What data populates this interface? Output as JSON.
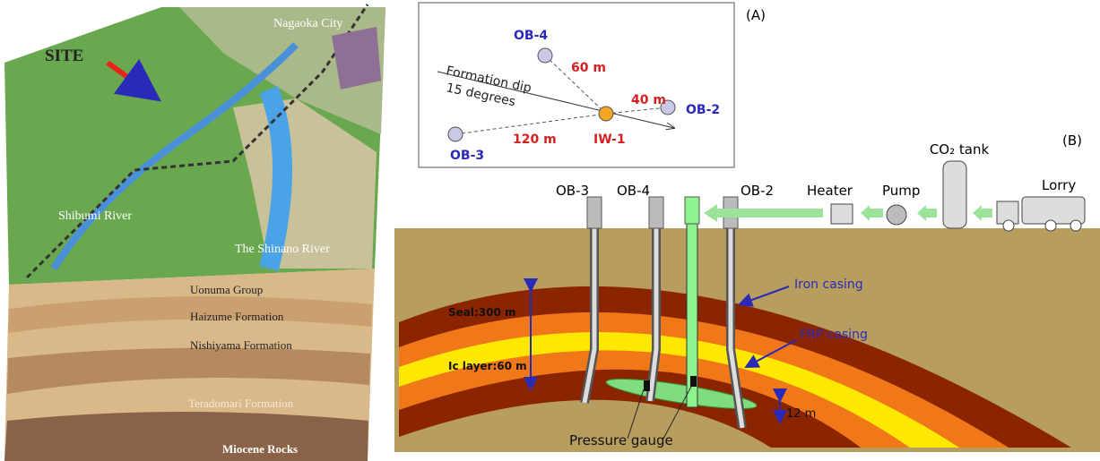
{
  "left_panel": {
    "site": "SITE",
    "city": "Nagaoka City",
    "river_1": "Shibumi River",
    "river_2": "The Shinano River",
    "formations": [
      "Uonuma Group",
      "Haizume Formation",
      "Nishiyama Formation",
      "Teradomari Formation",
      "Miocene Rocks"
    ]
  },
  "panel_a": {
    "label": "(A)",
    "wells": {
      "ob4": "OB-4",
      "ob2": "OB-2",
      "ob3": "OB-3",
      "iw1": "IW-1"
    },
    "distances": {
      "ob4": "60 m",
      "ob2": "40 m",
      "ob3": "120 m"
    },
    "dip_1": "Formation dip",
    "dip_2": "15 degrees"
  },
  "panel_b": {
    "label": "(B)",
    "equipment": {
      "tank": "CO₂ tank",
      "lorry": "Lorry",
      "pump": "Pump",
      "heater": "Heater"
    },
    "wells": [
      "OB-3",
      "OB-4",
      "OB-2"
    ],
    "iron": "Iron casing",
    "frp": "FRP casing",
    "seal": "Seal:300 m",
    "layer": "Ic layer:60 m",
    "thickness": "12 m",
    "gauge": "Pressure gauge"
  }
}
